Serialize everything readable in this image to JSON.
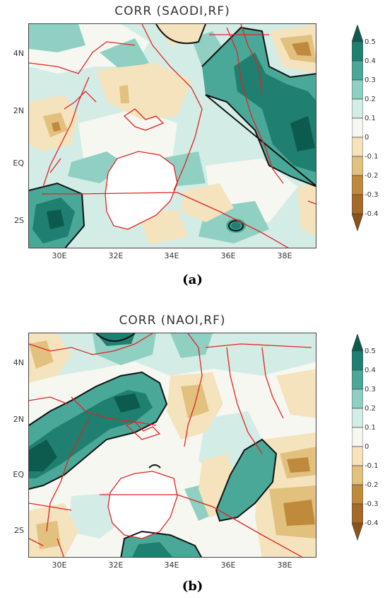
{
  "panels": [
    {
      "id": "a",
      "title": "CORR (SAODI,RF)",
      "caption": "(a)",
      "y_ticks": [
        "4N",
        "2N",
        "EQ",
        "2S"
      ],
      "x_ticks": [
        "30E",
        "32E",
        "34E",
        "36E",
        "38E"
      ],
      "colorbar_labels": [
        "0.5",
        "0.4",
        "0.3",
        "0.2",
        "0.1",
        "0",
        "-0.1",
        "-0.2",
        "-0.3",
        "-0.4"
      ]
    },
    {
      "id": "b",
      "title": "CORR (NAOI,RF)",
      "caption": "(b)",
      "y_ticks": [
        "4N",
        "2N",
        "EQ",
        "2S"
      ],
      "x_ticks": [
        "30E",
        "32E",
        "34E",
        "36E",
        "38E"
      ],
      "colorbar_labels": [
        "0.5",
        "0.4",
        "0.3",
        "0.2",
        "0.1",
        "0",
        "-0.1",
        "-0.2",
        "-0.3",
        "-0.4"
      ]
    }
  ],
  "colors": {
    "level_0.5": "#0d5a4e",
    "level_0.4": "#1f7f70",
    "level_0.3": "#4aa898",
    "level_0.2": "#8fd0c2",
    "level_0.1": "#d3ede6",
    "level_0": "#f7f7f2",
    "level_-0.1": "#f4e3bd",
    "level_-0.2": "#e2c07e",
    "level_-0.3": "#c08a3c",
    "level_-0.4": "#8c5218",
    "boundary": "#e02424",
    "contour": "#111111",
    "lake": "#ffffff"
  }
}
